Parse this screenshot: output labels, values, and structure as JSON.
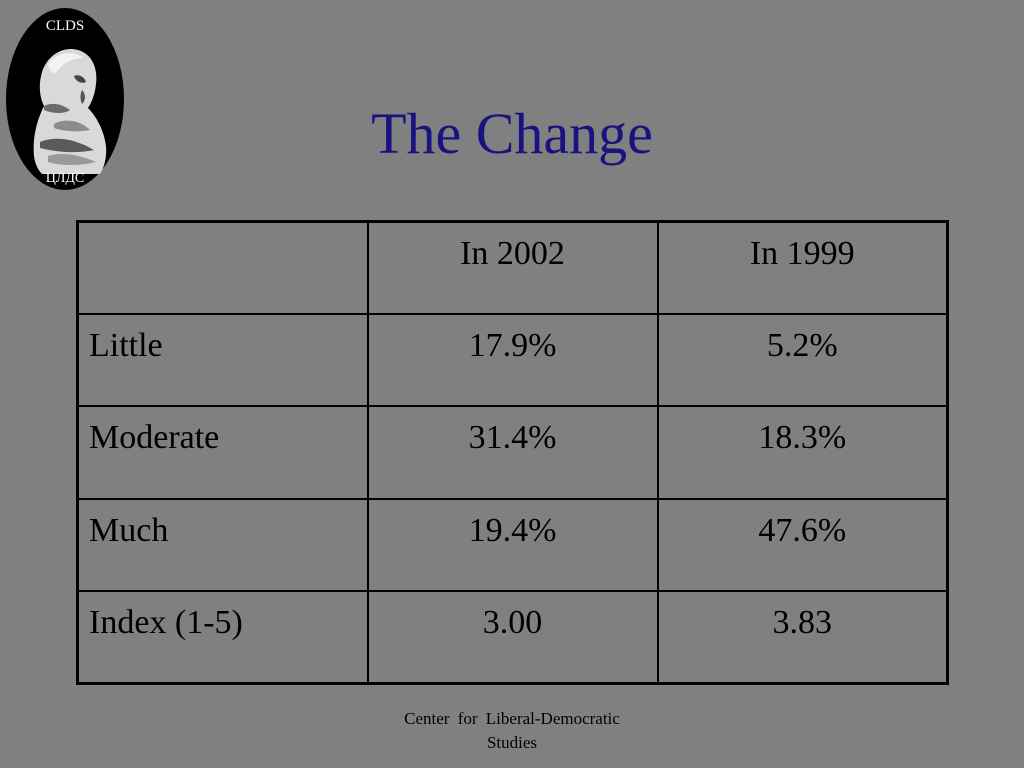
{
  "logo": {
    "top_text": "CLDS",
    "bottom_text": "ЦЛДС"
  },
  "title": "The Change",
  "table": {
    "headers": [
      "",
      "In 2002",
      "In 1999"
    ],
    "rows": [
      {
        "label": "Little",
        "y2002": "17.9%",
        "y1999": "5.2%"
      },
      {
        "label": "Moderate",
        "y2002": "31.4%",
        "y1999": "18.3%"
      },
      {
        "label": "Much",
        "y2002": "19.4%",
        "y1999": "47.6%"
      },
      {
        "label": "Index (1-5)",
        "y2002": "3.00",
        "y1999": "3.83"
      }
    ]
  },
  "footer": {
    "line1": "Center for Liberal-Democratic",
    "line2": "Studies"
  },
  "colors": {
    "background": "#808080",
    "title": "#1a1280",
    "text": "#000000"
  }
}
